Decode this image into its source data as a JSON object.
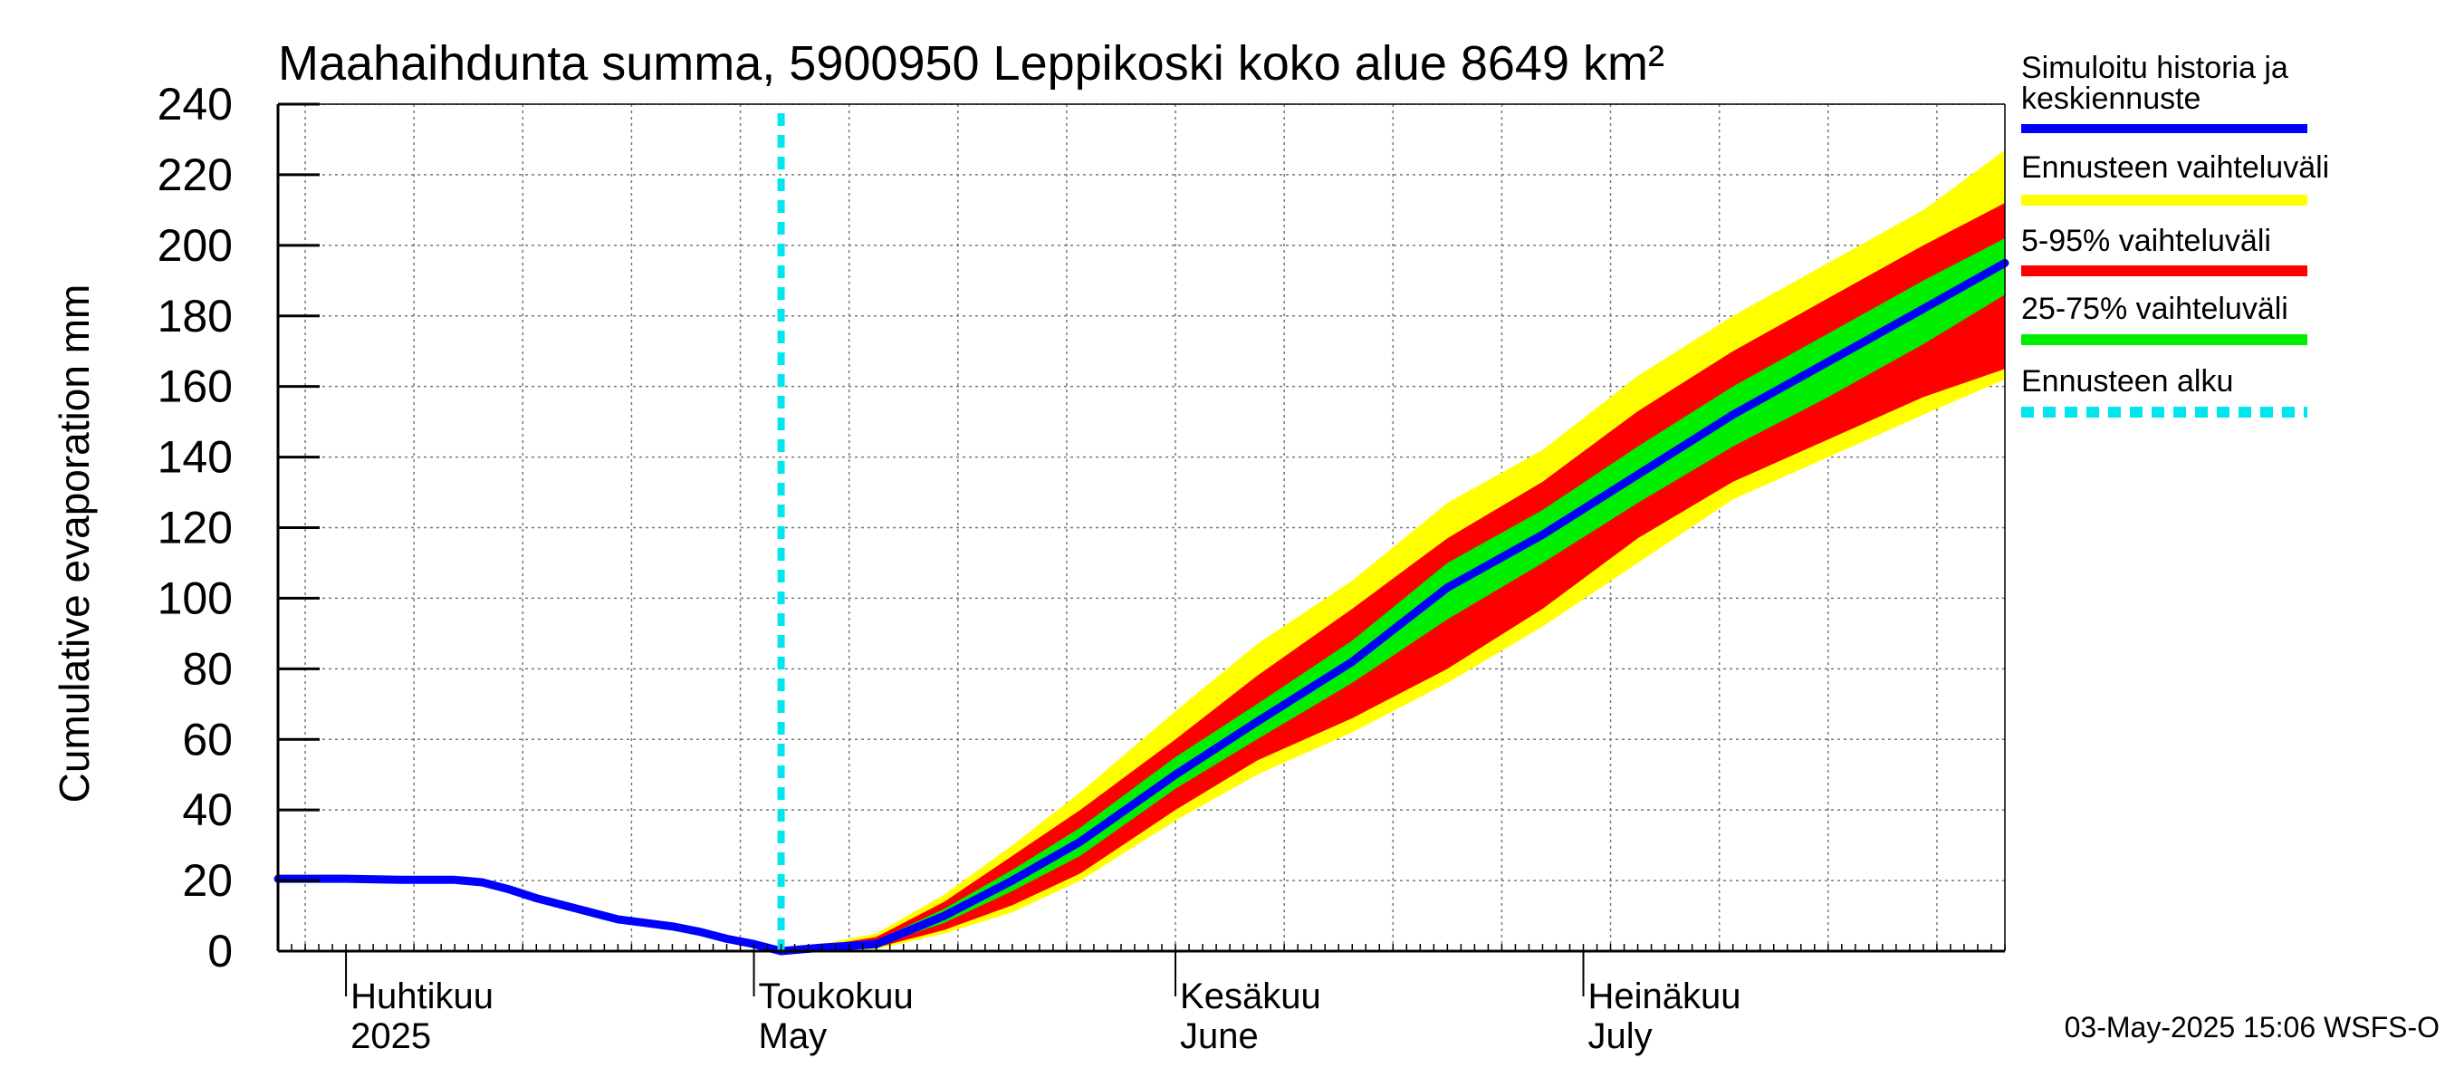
{
  "chart_data": {
    "type": "area",
    "title": "Maahaihdunta summa, 5900950 Leppikoski koko alue 8649 km²",
    "ylabel": "Cumulative evaporation   mm",
    "ylim": [
      0,
      240
    ],
    "yticks": [
      0,
      20,
      40,
      60,
      80,
      100,
      120,
      140,
      160,
      180,
      200,
      220,
      240
    ],
    "x_start": "2025-03-27",
    "x_end": "2025-08-01",
    "forecast_start": "2025-05-03",
    "grid": true,
    "month_labels": [
      {
        "date": "2025-04-01",
        "fi": "Huhtikuu",
        "en": "2025"
      },
      {
        "date": "2025-05-01",
        "fi": "Toukokuu",
        "en": "May"
      },
      {
        "date": "2025-06-01",
        "fi": "Kesäkuu",
        "en": "June"
      },
      {
        "date": "2025-07-01",
        "fi": "Heinäkuu",
        "en": "July"
      }
    ],
    "legend_position": "right",
    "legend": [
      {
        "label": "Simuloitu historia ja keskiennuste",
        "color": "#0000ff",
        "style": "solid"
      },
      {
        "label": "Ennusteen vaihteluväli",
        "color": "#ffff00",
        "style": "solid"
      },
      {
        "label": "5-95% vaihteluväli",
        "color": "#ff0000",
        "style": "solid"
      },
      {
        "label": "25-75% vaihteluväli",
        "color": "#00ee00",
        "style": "solid"
      },
      {
        "label": "Ennusteen alku",
        "color": "#00e5ee",
        "style": "dashed"
      }
    ],
    "history": {
      "name": "Simuloitu historia ja keskiennuste",
      "points": [
        [
          "2025-03-27",
          20.5
        ],
        [
          "2025-04-01",
          20.5
        ],
        [
          "2025-04-05",
          20.2
        ],
        [
          "2025-04-09",
          20.2
        ],
        [
          "2025-04-11",
          19.5
        ],
        [
          "2025-04-13",
          17.5
        ],
        [
          "2025-04-15",
          15.0
        ],
        [
          "2025-04-17",
          13.0
        ],
        [
          "2025-04-19",
          11.0
        ],
        [
          "2025-04-21",
          9.0
        ],
        [
          "2025-04-23",
          8.0
        ],
        [
          "2025-04-25",
          7.0
        ],
        [
          "2025-04-27",
          5.5
        ],
        [
          "2025-04-29",
          3.5
        ],
        [
          "2025-05-01",
          2.0
        ],
        [
          "2025-05-03",
          0.0
        ]
      ]
    },
    "forecast": {
      "dates": [
        "2025-05-03",
        "2025-05-06",
        "2025-05-10",
        "2025-05-15",
        "2025-05-20",
        "2025-05-25",
        "2025-06-01",
        "2025-06-07",
        "2025-06-14",
        "2025-06-21",
        "2025-06-28",
        "2025-07-05",
        "2025-07-12",
        "2025-07-19",
        "2025-07-26",
        "2025-08-01"
      ],
      "mean": [
        0,
        1,
        2,
        10,
        20,
        31,
        50,
        65,
        82,
        103,
        118,
        135,
        152,
        167,
        182,
        195
      ],
      "p25": [
        0,
        0.8,
        1.5,
        8,
        17,
        27,
        46,
        60,
        76,
        94,
        110,
        127,
        143,
        157,
        172,
        186
      ],
      "p75": [
        0,
        1.2,
        3,
        12,
        23,
        35,
        55,
        70,
        88,
        110,
        125,
        143,
        160,
        175,
        190,
        202
      ],
      "p5": [
        0,
        0.5,
        1,
        6,
        13,
        22,
        40,
        54,
        66,
        80,
        97,
        117,
        133,
        145,
        157,
        165
      ],
      "p95": [
        0,
        1.5,
        4,
        14,
        27,
        40,
        60,
        78,
        97,
        117,
        133,
        153,
        170,
        185,
        200,
        212
      ],
      "min": [
        0,
        0.3,
        0.5,
        5,
        11,
        20,
        37,
        50,
        62,
        76,
        92,
        110,
        128,
        140,
        152,
        162
      ],
      "max": [
        0,
        2,
        5,
        16,
        30,
        45,
        68,
        87,
        105,
        127,
        142,
        163,
        180,
        195,
        210,
        227
      ]
    }
  },
  "footer": {
    "timestamp": "03-May-2025 15:06 WSFS-O"
  }
}
